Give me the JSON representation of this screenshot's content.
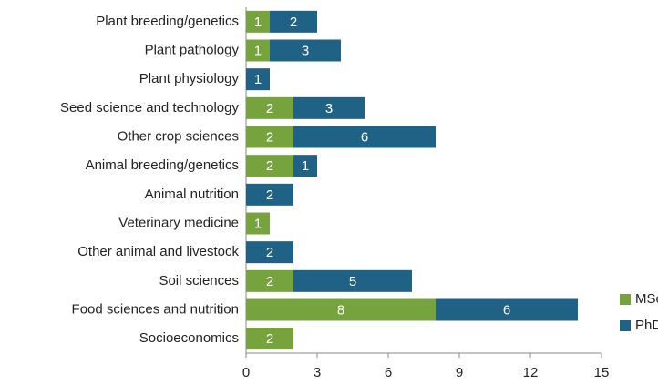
{
  "chart_data": {
    "type": "stacked_barh",
    "categories": [
      "Plant breeding/genetics",
      "Plant pathology",
      "Plant physiology",
      "Seed science and technology",
      "Other crop sciences",
      "Animal breeding/genetics",
      "Animal nutrition",
      "Veterinary medicine",
      "Other animal and livestock",
      "Soil sciences",
      "Food sciences and nutrition",
      "Socioeconomics"
    ],
    "series": [
      {
        "name": "MSc",
        "color": "#77a33f",
        "values": [
          1,
          1,
          null,
          2,
          2,
          2,
          null,
          1,
          null,
          2,
          8,
          2
        ]
      },
      {
        "name": "PhD",
        "color": "#1f6285",
        "values": [
          2,
          3,
          1,
          3,
          6,
          1,
          2,
          null,
          2,
          5,
          6,
          null
        ]
      }
    ],
    "xlim": [
      0,
      15
    ],
    "xticks": [
      0,
      3,
      6,
      9,
      12,
      15
    ],
    "legend": "lower right"
  }
}
